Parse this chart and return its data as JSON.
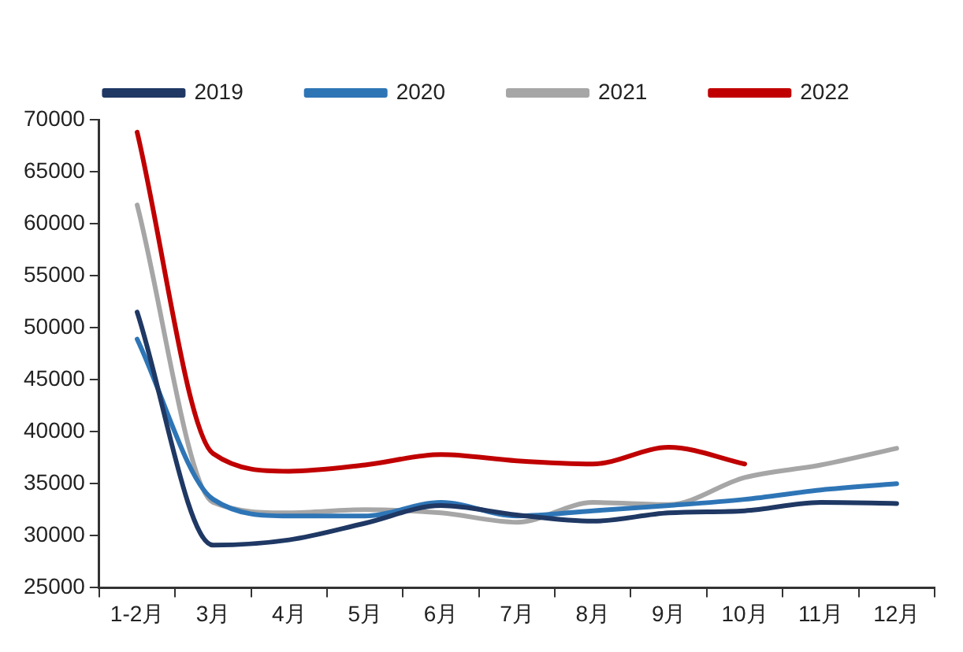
{
  "chart_data": {
    "type": "line",
    "categories": [
      "1-2月",
      "3月",
      "4月",
      "5月",
      "6月",
      "7月",
      "8月",
      "9月",
      "10月",
      "11月",
      "12月"
    ],
    "series": [
      {
        "name": "2019",
        "color": "#1f3864",
        "values": [
          51500,
          29100,
          29600,
          31200,
          32900,
          32000,
          31400,
          32200,
          32400,
          33200,
          33100
        ]
      },
      {
        "name": "2020",
        "color": "#2e75b6",
        "values": [
          48900,
          33500,
          31900,
          31900,
          33200,
          31900,
          32400,
          32900,
          33500,
          34400,
          35000
        ]
      },
      {
        "name": "2021",
        "color": "#a6a6a6",
        "values": [
          61800,
          33200,
          32200,
          32500,
          32200,
          31300,
          33200,
          33000,
          35600,
          36800,
          38400
        ]
      },
      {
        "name": "2022",
        "color": "#c00000",
        "values": [
          68800,
          37900,
          36200,
          36800,
          37800,
          37200,
          36900,
          38500,
          36900,
          null,
          null
        ]
      }
    ],
    "ylim": [
      25000,
      70000
    ],
    "yticks": [
      25000,
      30000,
      35000,
      40000,
      45000,
      50000,
      55000,
      60000,
      65000,
      70000
    ],
    "legend": "top",
    "grid": false,
    "marker": "none",
    "line_style": "solid"
  }
}
